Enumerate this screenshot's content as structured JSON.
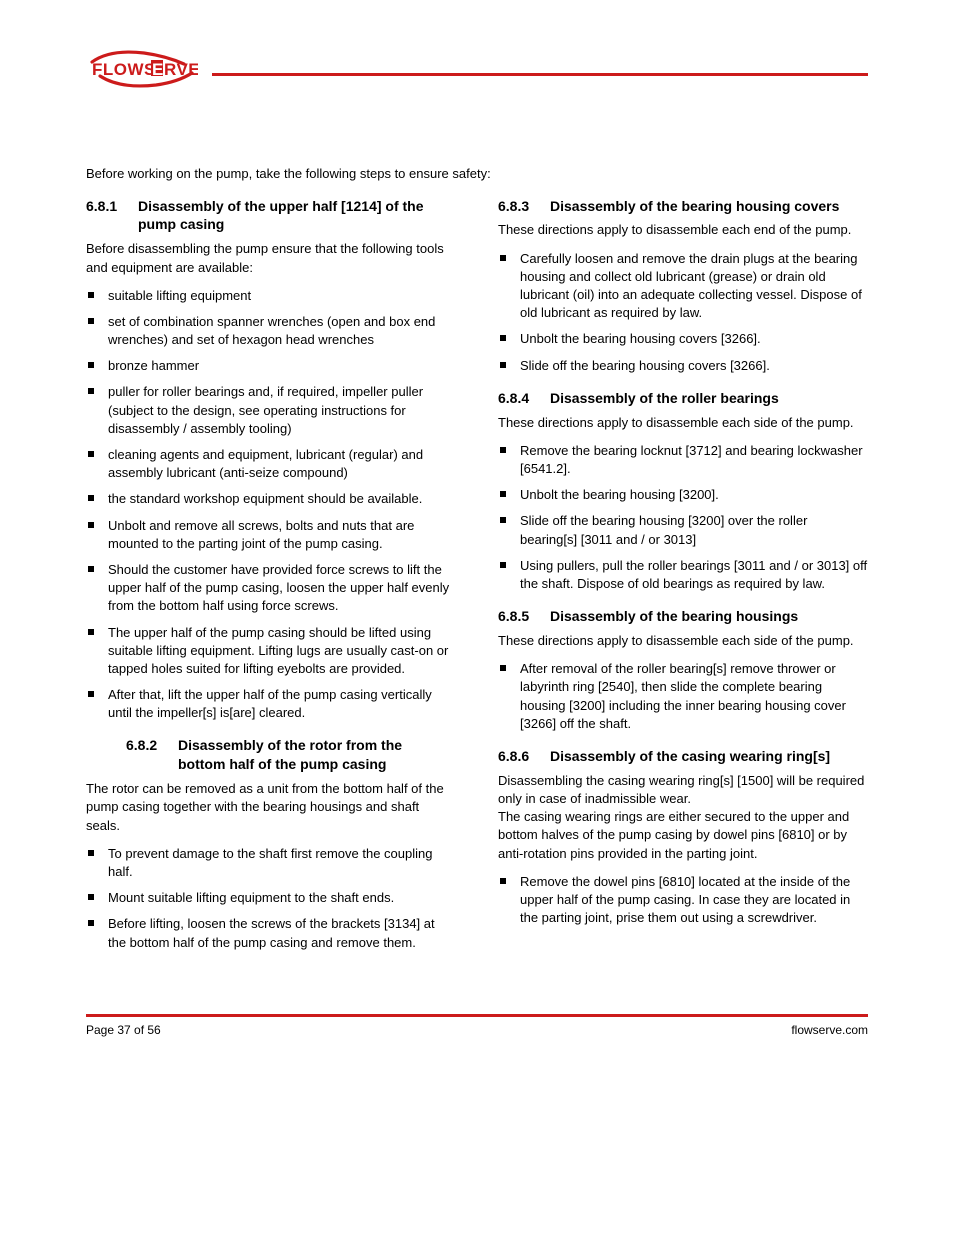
{
  "intro": "Before working on the pump, take the following steps to ensure safety:",
  "sections": [
    {
      "num": "6.8.1",
      "title": "Disassembly of the upper half  [1214] of the pump casing",
      "title_indent": false,
      "note": "Before disassembling the pump ensure that the following tools and equipment are available:",
      "items": [
        "suitable lifting equipment",
        "set of combination spanner wrenches (open and box end wrenches) and set of hexagon head wrenches",
        "bronze hammer",
        "puller for roller bearings and, if required, impeller puller (subject to the design, see operating instructions for disassembly / assembly tooling)",
        "cleaning agents and equipment, lubricant (regular) and assembly lubricant (anti-seize compound)",
        "the standard workshop equipment should be available.",
        "Unbolt and remove all screws, bolts and nuts that are mounted to the parting joint of the pump casing.",
        "Should the customer have provided force screws to lift the upper half of the pump casing, loosen the upper half evenly from the bottom half using force screws.",
        "The upper half of the pump casing should be lifted using suitable lifting equipment.  Lifting lugs are usually cast-on or tapped holes suited for lifting eyebolts are provided.",
        "After that, lift the upper half of the pump casing vertically until the impeller[s] is[are] cleared."
      ]
    },
    {
      "num": "6.8.2",
      "title": "Disassembly of the rotor from the bottom half of the pump casing",
      "title_indent": true,
      "note": "The rotor can be removed as a unit from the bottom half of the pump casing together with the bearing housings and shaft seals.",
      "items": [
        "To prevent damage to the shaft first remove the coupling half.",
        "Mount suitable lifting equipment to the shaft ends.",
        "Before lifting, loosen the screws of the brackets [3134] at the bottom half of the pump casing and remove them."
      ]
    },
    {
      "num": "6.8.3",
      "title": "Disassembly of the bearing housing covers",
      "title_indent": false,
      "note": "These directions apply to disassemble each end of the pump.",
      "items": [
        "Carefully loosen and remove the drain plugs at the bearing housing and collect old lubricant (grease) or drain old lubricant (oil) into an adequate collecting vessel.  Dispose of old lubricant as required by law.",
        "Unbolt the bearing housing covers [3266].",
        "Slide off the bearing housing covers [3266]."
      ]
    },
    {
      "num": "6.8.4",
      "title": "Disassembly of the roller bearings",
      "title_indent": false,
      "note": "These directions apply to disassemble each side of the pump.",
      "items": [
        "Remove the bearing locknut [3712] and bearing lockwasher [6541.2].",
        "Unbolt the bearing housing [3200].",
        "Slide off the bearing housing [3200] over the roller bearing[s] [3011 and / or 3013]",
        "Using pullers, pull the roller bearings [3011 and / or 3013] off the shaft.  Dispose of old bearings as required by law."
      ]
    },
    {
      "num": "6.8.5",
      "title": "Disassembly of the bearing housings",
      "title_indent": false,
      "note": "These directions apply to disassemble each side of the pump.",
      "items": [
        "After removal of the roller bearing[s] remove thrower or labyrinth ring [2540], then slide the complete bearing housing [3200] including the inner bearing housing cover [3266] off the shaft."
      ]
    },
    {
      "num": "6.8.6",
      "title": "Disassembly of the casing wearing ring[s]",
      "title_indent": false,
      "note": "Disassembling the casing wearing ring[s] [1500] will be required only in case of inadmissible wear.\nThe casing wearing rings are either secured to the upper and bottom halves of the pump casing by dowel pins [6810] or by anti-rotation pins provided in the parting joint.",
      "items": [
        "Remove the dowel pins [6810] located at the inside of the upper half of the pump casing.  In case they are located in the parting joint, prise them out using a screwdriver."
      ]
    }
  ],
  "footer": {
    "left": "Page 37 of 56",
    "right": "flowserve.com"
  },
  "colors": {
    "rule": "#cc1b1b",
    "text": "#000000",
    "background": "#ffffff"
  }
}
